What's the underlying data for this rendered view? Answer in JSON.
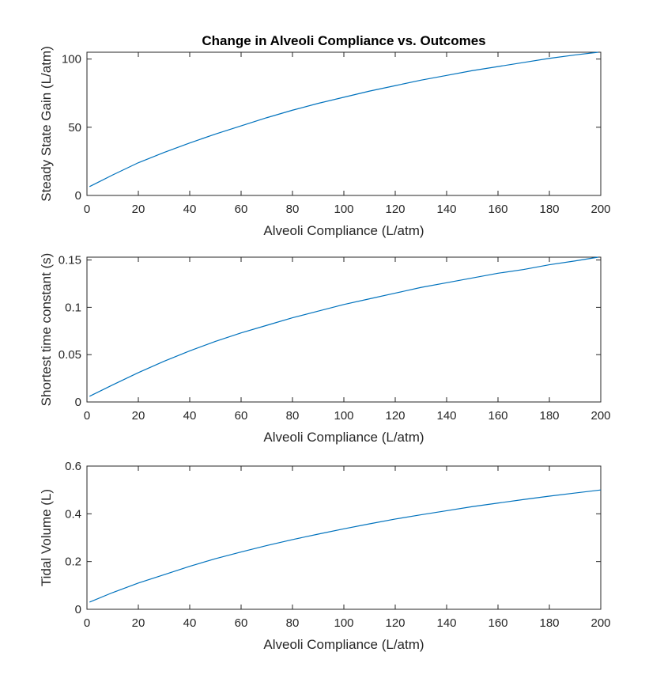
{
  "figure": {
    "title": "Change in Alveoli Compliance vs. Outcomes"
  },
  "colors": {
    "line": "#0072bd",
    "axis": "#262626",
    "background": "#ffffff"
  },
  "chart_data": [
    {
      "type": "line",
      "title": "Change in Alveoli Compliance vs. Outcomes",
      "xlabel": "Alveoli Compliance (L/atm)",
      "ylabel": "Steady State Gain (L/atm)",
      "xlim": [
        0,
        200
      ],
      "ylim": [
        0,
        105
      ],
      "xticks": [
        0,
        20,
        40,
        60,
        80,
        100,
        120,
        140,
        160,
        180,
        200
      ],
      "xtick_labels": [
        "0",
        "20",
        "40",
        "60",
        "80",
        "100",
        "120",
        "140",
        "160",
        "180",
        "200"
      ],
      "yticks": [
        0,
        50,
        100
      ],
      "ytick_labels": [
        "0",
        "50",
        "100"
      ],
      "grid": false,
      "series": [
        {
          "x": [
            1,
            10,
            20,
            30,
            40,
            50,
            60,
            70,
            80,
            90,
            100,
            110,
            120,
            130,
            140,
            150,
            160,
            170,
            180,
            190,
            199
          ],
          "values": [
            6.5,
            15,
            24,
            31.5,
            38.5,
            45,
            51,
            57,
            62.5,
            67.5,
            72,
            76.5,
            80.5,
            84.5,
            88,
            91.5,
            94.5,
            97.5,
            100.5,
            103,
            105
          ]
        }
      ]
    },
    {
      "type": "line",
      "xlabel": "Alveoli Compliance (L/atm)",
      "ylabel": "Shortest time constant (s)",
      "xlim": [
        0,
        200
      ],
      "ylim": [
        0,
        0.153
      ],
      "xticks": [
        0,
        20,
        40,
        60,
        80,
        100,
        120,
        140,
        160,
        180,
        200
      ],
      "xtick_labels": [
        "0",
        "20",
        "40",
        "60",
        "80",
        "100",
        "120",
        "140",
        "160",
        "180",
        "200"
      ],
      "yticks": [
        0,
        0.05,
        0.1,
        0.15
      ],
      "ytick_labels": [
        "0",
        "0.05",
        "0.1",
        "0.15"
      ],
      "grid": false,
      "series": [
        {
          "x": [
            1,
            10,
            20,
            30,
            40,
            50,
            60,
            70,
            80,
            90,
            100,
            110,
            120,
            130,
            140,
            150,
            160,
            170,
            180,
            190,
            199
          ],
          "values": [
            0.006,
            0.018,
            0.031,
            0.043,
            0.054,
            0.064,
            0.073,
            0.081,
            0.089,
            0.096,
            0.103,
            0.109,
            0.115,
            0.121,
            0.126,
            0.131,
            0.136,
            0.14,
            0.145,
            0.149,
            0.153
          ]
        }
      ]
    },
    {
      "type": "line",
      "xlabel": "Alveoli Compliance (L/atm)",
      "ylabel": "Tidal Volume (L)",
      "xlim": [
        0,
        200
      ],
      "ylim": [
        0,
        0.6
      ],
      "xticks": [
        0,
        20,
        40,
        60,
        80,
        100,
        120,
        140,
        160,
        180,
        200
      ],
      "xtick_labels": [
        "0",
        "20",
        "40",
        "60",
        "80",
        "100",
        "120",
        "140",
        "160",
        "180",
        "200"
      ],
      "yticks": [
        0,
        0.2,
        0.4,
        0.6
      ],
      "ytick_labels": [
        "0",
        "0.2",
        "0.4",
        "0.6"
      ],
      "grid": false,
      "series": [
        {
          "x": [
            1,
            10,
            20,
            30,
            40,
            50,
            60,
            70,
            80,
            90,
            100,
            110,
            120,
            130,
            140,
            150,
            160,
            170,
            180,
            190,
            200
          ],
          "values": [
            0.03,
            0.07,
            0.11,
            0.145,
            0.18,
            0.212,
            0.24,
            0.267,
            0.292,
            0.315,
            0.337,
            0.358,
            0.378,
            0.396,
            0.413,
            0.43,
            0.445,
            0.46,
            0.474,
            0.487,
            0.5
          ]
        }
      ]
    }
  ]
}
